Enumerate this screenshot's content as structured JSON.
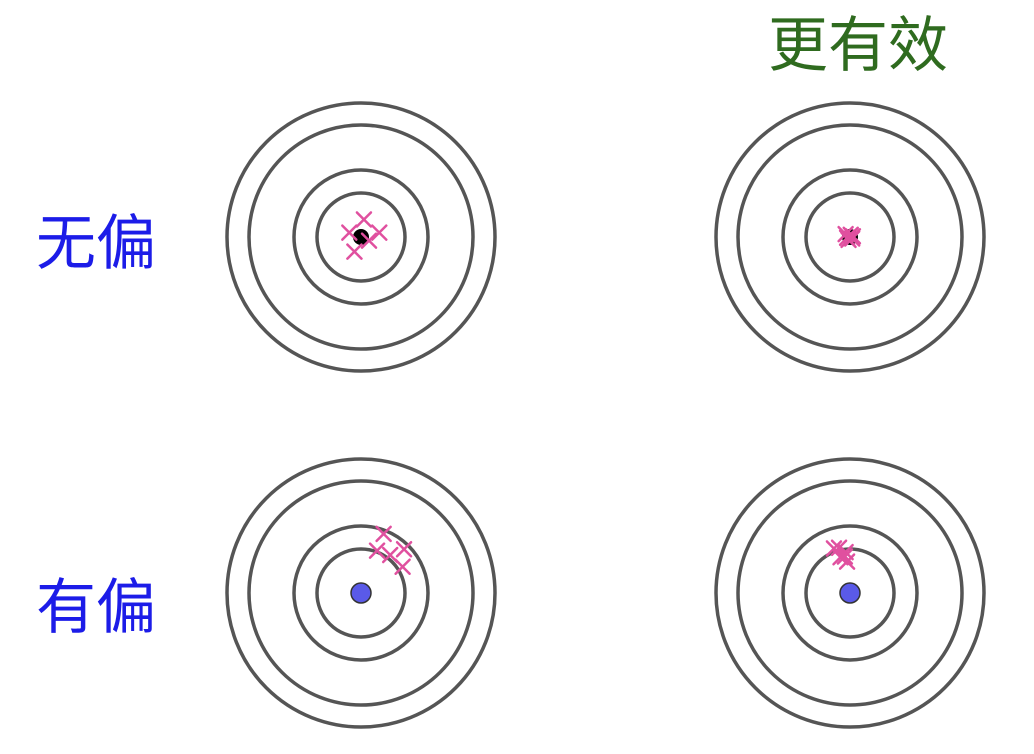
{
  "labels": {
    "column_right": "更有效",
    "row_top": "无偏",
    "row_bottom": "有偏"
  },
  "colors": {
    "ring": "#555555",
    "cross": "#e0509f",
    "center_top": "#000000",
    "center_bottom": "#5a5ae8",
    "label_blue": "#1c1ce8",
    "label_green": "#2f6b1f"
  },
  "panels": [
    {
      "name": "unbiased-less-efficient",
      "center_style": "black-dot",
      "hits": [
        [
          0.4,
          2.4
        ],
        [
          -1.6,
          0.6
        ],
        [
          2.5,
          0.6
        ],
        [
          1.1,
          -0.5
        ],
        [
          -0.9,
          -2.0
        ]
      ]
    },
    {
      "name": "unbiased-more-efficient",
      "center_style": "black-dot",
      "hits": [
        [
          -0.6,
          0.4
        ],
        [
          0.1,
          0.3
        ],
        [
          0.3,
          -0.2
        ],
        [
          -0.2,
          -0.4
        ],
        [
          0.4,
          0.1
        ],
        [
          -0.4,
          -0.1
        ]
      ]
    },
    {
      "name": "biased-less-efficient",
      "center_style": "blue-dot",
      "hits": [
        [
          3.1,
          8.1
        ],
        [
          2.2,
          5.8
        ],
        [
          4.0,
          5.2
        ],
        [
          5.9,
          6.0
        ],
        [
          5.7,
          3.6
        ]
      ]
    },
    {
      "name": "biased-more-efficient",
      "center_style": "blue-dot",
      "hits": [
        [
          -2.2,
          6.1
        ],
        [
          -1.5,
          6.2
        ],
        [
          -0.6,
          5.6
        ],
        [
          -0.7,
          5.0
        ],
        [
          -0.4,
          4.3
        ],
        [
          -1.3,
          4.9
        ]
      ]
    }
  ]
}
